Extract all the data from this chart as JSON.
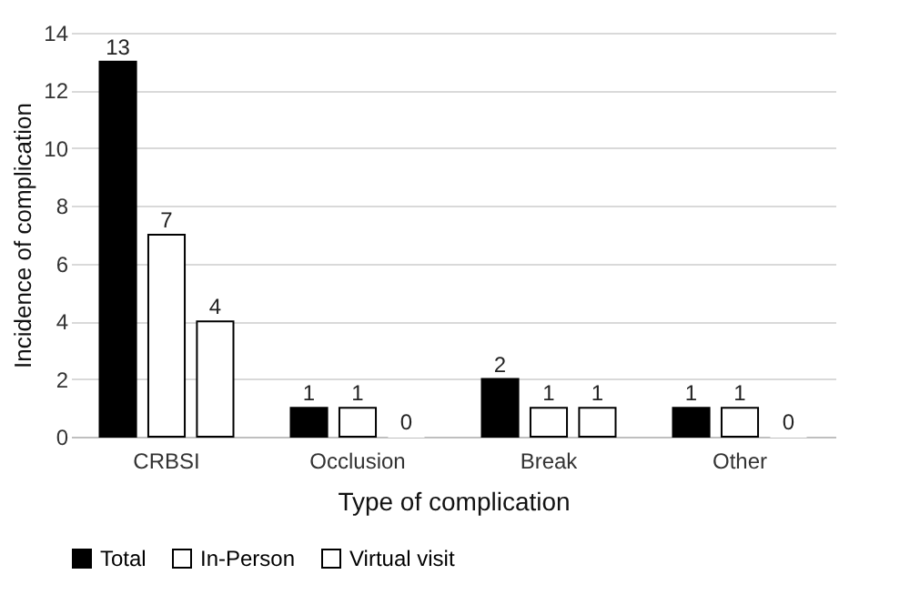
{
  "chart_data": {
    "type": "bar",
    "xlabel": "Type of complication",
    "ylabel": "Incidence of complication",
    "categories": [
      "CRBSI",
      "Occlusion",
      "Break",
      "Other"
    ],
    "series": [
      {
        "name": "Total",
        "color": "#000000",
        "values": [
          13,
          1,
          2,
          1
        ]
      },
      {
        "name": "In-Person",
        "color": "#ffffff",
        "values": [
          7,
          1,
          1,
          1
        ]
      },
      {
        "name": "Virtual visit",
        "color": "#ffffff",
        "values": [
          4,
          0,
          1,
          0
        ]
      }
    ],
    "ylim": [
      0,
      14
    ],
    "yticks": [
      0,
      2,
      4,
      6,
      8,
      10,
      12,
      14
    ],
    "grid": "y",
    "legend": "bottom",
    "data_labels": true
  }
}
